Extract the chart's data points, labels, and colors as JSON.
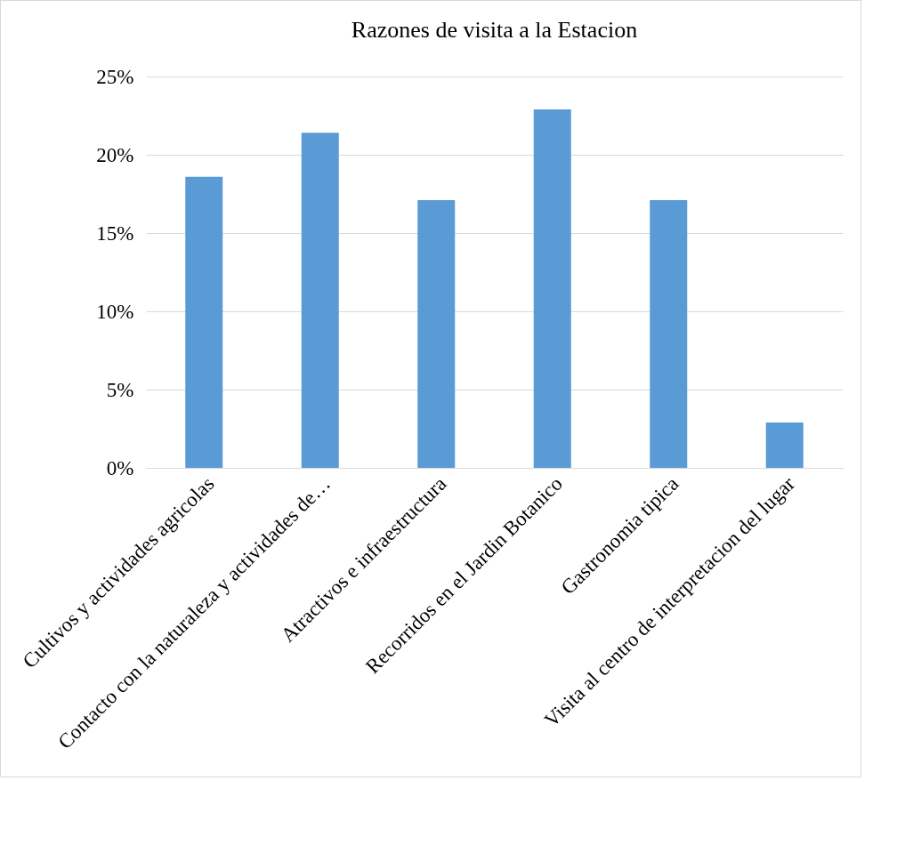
{
  "chart_data": {
    "type": "bar",
    "title": "Razones de visita a la Estacion",
    "categories": [
      "Cultivos y actividades agricolas",
      "Contacto con la naturaleza y actividades de…",
      "Atractivos e infraestructura",
      "Recorridos en el Jardin Botanico",
      "Gastronomia tipica",
      "Visita al centro de interpretacion del lugar"
    ],
    "values": [
      18.6,
      21.4,
      17.1,
      22.9,
      17.1,
      2.9
    ],
    "color": "#5b9bd5",
    "ylim": [
      0,
      25
    ],
    "yticks": [
      {
        "value": 0,
        "label": "0%"
      },
      {
        "value": 5,
        "label": "5%"
      },
      {
        "value": 10,
        "label": "10%"
      },
      {
        "value": 15,
        "label": "15%"
      },
      {
        "value": 20,
        "label": "20%"
      },
      {
        "value": 25,
        "label": "25%"
      }
    ],
    "grid": "y"
  }
}
